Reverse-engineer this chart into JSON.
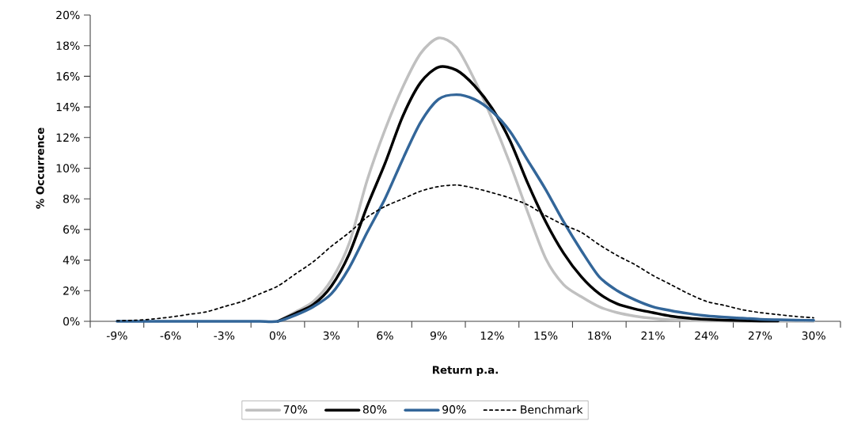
{
  "chart_data": {
    "type": "line",
    "xlabel": "Return p.a.",
    "ylabel": "% Occurrence",
    "x": [
      -9,
      -8,
      -7,
      -6,
      -5,
      -4,
      -3,
      -2,
      -1,
      0,
      1,
      2,
      3,
      4,
      5,
      6,
      7,
      8,
      9,
      10,
      11,
      12,
      13,
      14,
      15,
      16,
      17,
      18,
      19,
      20,
      21,
      22,
      23,
      24,
      25,
      26,
      27,
      28,
      29,
      30
    ],
    "series": [
      {
        "name": "70%",
        "color": "#c0c0c0",
        "line_style": "solid",
        "values": [
          null,
          null,
          null,
          null,
          null,
          null,
          null,
          null,
          null,
          0,
          0.62,
          1.3,
          2.7,
          5.1,
          9.2,
          12.5,
          15.3,
          17.5,
          18.5,
          17.9,
          15.8,
          13.2,
          10.3,
          7.1,
          4.1,
          2.4,
          1.6,
          0.95,
          0.57,
          0.34,
          0.19,
          0.1,
          0.05,
          0.03,
          0.02,
          0,
          0,
          0,
          0,
          0
        ]
      },
      {
        "name": "80%",
        "color": "#000000",
        "line_style": "solid",
        "values": [
          null,
          null,
          null,
          null,
          null,
          null,
          null,
          null,
          null,
          0,
          0.53,
          1.1,
          2.3,
          4.4,
          7.5,
          10.3,
          13.4,
          15.6,
          16.6,
          16.4,
          15.4,
          13.9,
          11.8,
          9.0,
          6.5,
          4.45,
          2.9,
          1.8,
          1.14,
          0.81,
          0.57,
          0.34,
          0.21,
          0.13,
          0.08,
          0.05,
          0.03,
          0.02,
          null,
          null
        ]
      },
      {
        "name": "90%",
        "color": "#336699",
        "line_style": "solid",
        "values": [
          0,
          0,
          0,
          0,
          0,
          0,
          0,
          0,
          0,
          0,
          0.41,
          0.96,
          1.8,
          3.5,
          5.8,
          8.0,
          10.6,
          13.0,
          14.5,
          14.8,
          14.5,
          13.7,
          12.4,
          10.5,
          8.6,
          6.5,
          4.6,
          2.9,
          2.0,
          1.4,
          0.95,
          0.7,
          0.51,
          0.36,
          0.27,
          0.21,
          0.13,
          0.1,
          0.08,
          0.06
        ]
      },
      {
        "name": "Benchmark",
        "color": "#000000",
        "line_style": "dashed",
        "values": [
          0.03,
          0.07,
          0.15,
          0.28,
          0.45,
          0.62,
          0.96,
          1.3,
          1.8,
          2.3,
          3.1,
          3.9,
          4.9,
          5.8,
          6.8,
          7.5,
          8.0,
          8.5,
          8.8,
          8.9,
          8.7,
          8.4,
          8.05,
          7.6,
          6.9,
          6.3,
          5.8,
          5.0,
          4.3,
          3.7,
          3.0,
          2.4,
          1.8,
          1.3,
          1.04,
          0.76,
          0.57,
          0.44,
          0.32,
          0.23
        ]
      }
    ],
    "xlim": [
      -10.5,
      31.5
    ],
    "xticks": [
      {
        "value": -9,
        "label": "-9%"
      },
      {
        "value": -6,
        "label": "-6%"
      },
      {
        "value": -3,
        "label": "-3%"
      },
      {
        "value": 0,
        "label": "0%"
      },
      {
        "value": 3,
        "label": "3%"
      },
      {
        "value": 6,
        "label": "6%"
      },
      {
        "value": 9,
        "label": "9%"
      },
      {
        "value": 12,
        "label": "12%"
      },
      {
        "value": 15,
        "label": "15%"
      },
      {
        "value": 18,
        "label": "18%"
      },
      {
        "value": 21,
        "label": "21%"
      },
      {
        "value": 24,
        "label": "24%"
      },
      {
        "value": 27,
        "label": "27%"
      },
      {
        "value": 30,
        "label": "30%"
      },
      {
        "value": -10.5,
        "label": null
      },
      {
        "value": -7.5,
        "label": null
      },
      {
        "value": -4.5,
        "label": null
      },
      {
        "value": -1.5,
        "label": null
      },
      {
        "value": 1.5,
        "label": null
      },
      {
        "value": 4.5,
        "label": null
      },
      {
        "value": 7.5,
        "label": null
      },
      {
        "value": 10.5,
        "label": null
      },
      {
        "value": 13.5,
        "label": null
      },
      {
        "value": 16.5,
        "label": null
      },
      {
        "value": 19.5,
        "label": null
      },
      {
        "value": 22.5,
        "label": null
      },
      {
        "value": 25.5,
        "label": null
      },
      {
        "value": 28.5,
        "label": null
      },
      {
        "value": 31.5,
        "label": null
      }
    ],
    "ylim": [
      0,
      20
    ],
    "yticks": [
      {
        "value": 0,
        "label": "0%"
      },
      {
        "value": 2,
        "label": "2%"
      },
      {
        "value": 4,
        "label": "4%"
      },
      {
        "value": 6,
        "label": "6%"
      },
      {
        "value": 8,
        "label": "8%"
      },
      {
        "value": 10,
        "label": "10%"
      },
      {
        "value": 12,
        "label": "12%"
      },
      {
        "value": 14,
        "label": "14%"
      },
      {
        "value": 16,
        "label": "16%"
      },
      {
        "value": 18,
        "label": "18%"
      },
      {
        "value": 20,
        "label": "20%"
      }
    ],
    "grid": false,
    "legend": "bottom",
    "marker": "none"
  }
}
